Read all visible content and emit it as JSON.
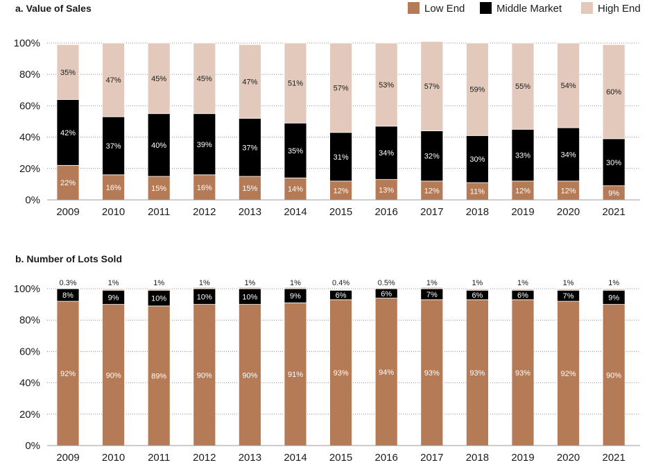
{
  "legend": {
    "items": [
      {
        "label": "Low End",
        "color": "#b57a56"
      },
      {
        "label": "Middle Market",
        "color": "#000000"
      },
      {
        "label": "High End",
        "color": "#e2c9bb"
      }
    ]
  },
  "colors": {
    "text": "#1a1a1a",
    "label_on_light": "#1a1a1a",
    "label_on_dark": "#ffffff"
  },
  "chart_data": [
    {
      "type": "bar",
      "stacked": true,
      "title": "a. Value of Sales",
      "xlabel": "",
      "ylabel": "",
      "ylim": [
        0,
        100
      ],
      "y_ticks": [
        "0%",
        "20%",
        "40%",
        "60%",
        "80%",
        "100%"
      ],
      "grid": true,
      "legend_position": "top-right",
      "categories": [
        "2009",
        "2010",
        "2011",
        "2012",
        "2013",
        "2014",
        "2015",
        "2016",
        "2017",
        "2018",
        "2019",
        "2020",
        "2021"
      ],
      "series": [
        {
          "name": "Low End",
          "values": [
            22,
            16,
            15,
            16,
            15,
            14,
            12,
            13,
            12,
            11,
            12,
            12,
            9
          ],
          "labels": [
            "22%",
            "16%",
            "15%",
            "16%",
            "15%",
            "14%",
            "12%",
            "13%",
            "12%",
            "11%",
            "12%",
            "12%",
            "9%"
          ]
        },
        {
          "name": "Middle Market",
          "values": [
            42,
            37,
            40,
            39,
            37,
            35,
            31,
            34,
            32,
            30,
            33,
            34,
            30
          ],
          "labels": [
            "42%",
            "37%",
            "40%",
            "39%",
            "37%",
            "35%",
            "31%",
            "34%",
            "32%",
            "30%",
            "33%",
            "34%",
            "30%"
          ]
        },
        {
          "name": "High End",
          "values": [
            35,
            47,
            45,
            45,
            47,
            51,
            57,
            53,
            57,
            59,
            55,
            54,
            60
          ],
          "labels": [
            "35%",
            "47%",
            "45%",
            "45%",
            "47%",
            "51%",
            "57%",
            "53%",
            "57%",
            "59%",
            "55%",
            "54%",
            "60%"
          ]
        }
      ]
    },
    {
      "type": "bar",
      "stacked": true,
      "title": "b. Number of Lots Sold",
      "xlabel": "",
      "ylabel": "",
      "ylim": [
        0,
        100
      ],
      "y_ticks": [
        "0%",
        "20%",
        "40%",
        "60%",
        "80%",
        "100%"
      ],
      "grid": true,
      "categories": [
        "2009",
        "2010",
        "2011",
        "2012",
        "2013",
        "2014",
        "2015",
        "2016",
        "2017",
        "2018",
        "2019",
        "2020",
        "2021"
      ],
      "series": [
        {
          "name": "Low End",
          "values": [
            92,
            90,
            89,
            90,
            90,
            91,
            93,
            94,
            93,
            93,
            93,
            92,
            90
          ],
          "labels": [
            "92%",
            "90%",
            "89%",
            "90%",
            "90%",
            "91%",
            "93%",
            "94%",
            "93%",
            "93%",
            "93%",
            "92%",
            "90%"
          ]
        },
        {
          "name": "Middle Market",
          "values": [
            8,
            9,
            10,
            10,
            10,
            9,
            6,
            6,
            7,
            6,
            6,
            7,
            9
          ],
          "labels": [
            "8%",
            "9%",
            "10%",
            "10%",
            "10%",
            "9%",
            "6%",
            "6%",
            "7%",
            "6%",
            "6%",
            "7%",
            "9%"
          ]
        },
        {
          "name": "High End",
          "values": [
            0.3,
            1,
            1,
            1,
            1,
            1,
            0.4,
            0.5,
            1,
            1,
            1,
            1,
            1
          ],
          "labels": [
            "0.3%",
            "1%",
            "1%",
            "1%",
            "1%",
            "1%",
            "0.4%",
            "0.5%",
            "1%",
            "1%",
            "1%",
            "1%",
            "1%"
          ]
        }
      ]
    }
  ]
}
